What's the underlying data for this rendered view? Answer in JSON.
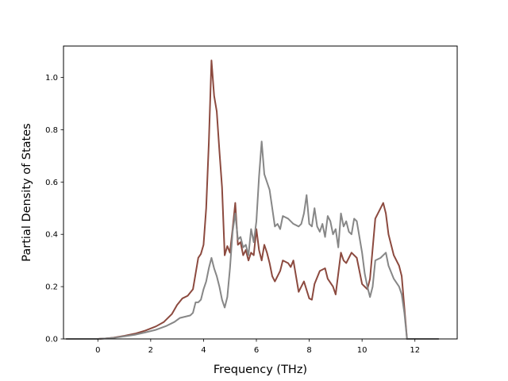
{
  "chart_data": {
    "type": "line",
    "xlabel": "Frequency (THz)",
    "ylabel": "Partial Density of States",
    "xlim": [
      -1.3,
      13.6
    ],
    "ylim": [
      0,
      1.12
    ],
    "xticks": [
      0,
      2,
      4,
      6,
      8,
      10,
      12
    ],
    "yticks": [
      0.0,
      0.2,
      0.4,
      0.6,
      0.8,
      1.0
    ],
    "xtick_labels": [
      "0",
      "2",
      "4",
      "6",
      "8",
      "10",
      "12"
    ],
    "ytick_labels": [
      "0.0",
      "0.2",
      "0.4",
      "0.6",
      "0.8",
      "1.0"
    ],
    "grid": false,
    "series": [
      {
        "color": "#8c4a3f",
        "points": [
          [
            -1.2,
            0
          ],
          [
            0.0,
            0
          ],
          [
            0.3,
            0.002
          ],
          [
            0.6,
            0.005
          ],
          [
            1.0,
            0.012
          ],
          [
            1.4,
            0.02
          ],
          [
            1.8,
            0.032
          ],
          [
            2.2,
            0.048
          ],
          [
            2.5,
            0.065
          ],
          [
            2.8,
            0.095
          ],
          [
            3.0,
            0.13
          ],
          [
            3.2,
            0.155
          ],
          [
            3.4,
            0.165
          ],
          [
            3.6,
            0.19
          ],
          [
            3.7,
            0.25
          ],
          [
            3.8,
            0.31
          ],
          [
            3.9,
            0.325
          ],
          [
            4.0,
            0.36
          ],
          [
            4.1,
            0.5
          ],
          [
            4.2,
            0.75
          ],
          [
            4.3,
            1.065
          ],
          [
            4.4,
            0.93
          ],
          [
            4.5,
            0.87
          ],
          [
            4.6,
            0.72
          ],
          [
            4.7,
            0.58
          ],
          [
            4.8,
            0.32
          ],
          [
            4.9,
            0.355
          ],
          [
            5.0,
            0.33
          ],
          [
            5.1,
            0.42
          ],
          [
            5.2,
            0.52
          ],
          [
            5.3,
            0.36
          ],
          [
            5.4,
            0.37
          ],
          [
            5.5,
            0.32
          ],
          [
            5.6,
            0.34
          ],
          [
            5.7,
            0.3
          ],
          [
            5.8,
            0.33
          ],
          [
            5.9,
            0.32
          ],
          [
            6.0,
            0.42
          ],
          [
            6.1,
            0.34
          ],
          [
            6.2,
            0.3
          ],
          [
            6.3,
            0.36
          ],
          [
            6.4,
            0.33
          ],
          [
            6.5,
            0.29
          ],
          [
            6.6,
            0.24
          ],
          [
            6.7,
            0.22
          ],
          [
            6.9,
            0.26
          ],
          [
            7.0,
            0.3
          ],
          [
            7.2,
            0.29
          ],
          [
            7.3,
            0.275
          ],
          [
            7.4,
            0.3
          ],
          [
            7.6,
            0.18
          ],
          [
            7.7,
            0.2
          ],
          [
            7.8,
            0.22
          ],
          [
            8.0,
            0.155
          ],
          [
            8.1,
            0.15
          ],
          [
            8.2,
            0.21
          ],
          [
            8.4,
            0.26
          ],
          [
            8.6,
            0.27
          ],
          [
            8.7,
            0.23
          ],
          [
            8.9,
            0.2
          ],
          [
            9.0,
            0.17
          ],
          [
            9.1,
            0.25
          ],
          [
            9.2,
            0.33
          ],
          [
            9.3,
            0.3
          ],
          [
            9.4,
            0.29
          ],
          [
            9.5,
            0.31
          ],
          [
            9.6,
            0.33
          ],
          [
            9.8,
            0.31
          ],
          [
            9.9,
            0.26
          ],
          [
            10.0,
            0.21
          ],
          [
            10.1,
            0.2
          ],
          [
            10.2,
            0.19
          ],
          [
            10.3,
            0.23
          ],
          [
            10.5,
            0.46
          ],
          [
            10.7,
            0.5
          ],
          [
            10.8,
            0.52
          ],
          [
            10.9,
            0.48
          ],
          [
            11.0,
            0.4
          ],
          [
            11.2,
            0.32
          ],
          [
            11.4,
            0.28
          ],
          [
            11.5,
            0.24
          ],
          [
            11.6,
            0.12
          ],
          [
            11.7,
            0.0
          ],
          [
            12.9,
            0
          ]
        ]
      },
      {
        "color": "#878787",
        "points": [
          [
            -1.2,
            0
          ],
          [
            0.0,
            0
          ],
          [
            0.3,
            0.002
          ],
          [
            0.6,
            0.004
          ],
          [
            1.0,
            0.01
          ],
          [
            1.4,
            0.016
          ],
          [
            1.8,
            0.025
          ],
          [
            2.2,
            0.035
          ],
          [
            2.6,
            0.05
          ],
          [
            2.9,
            0.065
          ],
          [
            3.1,
            0.08
          ],
          [
            3.3,
            0.085
          ],
          [
            3.5,
            0.09
          ],
          [
            3.6,
            0.1
          ],
          [
            3.7,
            0.14
          ],
          [
            3.8,
            0.14
          ],
          [
            3.9,
            0.15
          ],
          [
            4.0,
            0.19
          ],
          [
            4.1,
            0.22
          ],
          [
            4.2,
            0.27
          ],
          [
            4.3,
            0.31
          ],
          [
            4.4,
            0.27
          ],
          [
            4.5,
            0.24
          ],
          [
            4.6,
            0.2
          ],
          [
            4.7,
            0.15
          ],
          [
            4.8,
            0.12
          ],
          [
            4.9,
            0.16
          ],
          [
            5.0,
            0.27
          ],
          [
            5.1,
            0.41
          ],
          [
            5.2,
            0.48
          ],
          [
            5.3,
            0.38
          ],
          [
            5.4,
            0.39
          ],
          [
            5.5,
            0.35
          ],
          [
            5.6,
            0.36
          ],
          [
            5.7,
            0.32
          ],
          [
            5.8,
            0.42
          ],
          [
            5.9,
            0.37
          ],
          [
            6.0,
            0.45
          ],
          [
            6.1,
            0.62
          ],
          [
            6.2,
            0.755
          ],
          [
            6.3,
            0.63
          ],
          [
            6.4,
            0.6
          ],
          [
            6.5,
            0.57
          ],
          [
            6.6,
            0.5
          ],
          [
            6.7,
            0.43
          ],
          [
            6.8,
            0.44
          ],
          [
            6.9,
            0.42
          ],
          [
            7.0,
            0.47
          ],
          [
            7.2,
            0.46
          ],
          [
            7.4,
            0.44
          ],
          [
            7.6,
            0.43
          ],
          [
            7.7,
            0.44
          ],
          [
            7.8,
            0.48
          ],
          [
            7.9,
            0.55
          ],
          [
            8.0,
            0.44
          ],
          [
            8.1,
            0.43
          ],
          [
            8.2,
            0.5
          ],
          [
            8.3,
            0.43
          ],
          [
            8.4,
            0.41
          ],
          [
            8.5,
            0.44
          ],
          [
            8.6,
            0.39
          ],
          [
            8.7,
            0.47
          ],
          [
            8.8,
            0.45
          ],
          [
            8.9,
            0.4
          ],
          [
            9.0,
            0.42
          ],
          [
            9.1,
            0.35
          ],
          [
            9.2,
            0.48
          ],
          [
            9.3,
            0.43
          ],
          [
            9.4,
            0.45
          ],
          [
            9.5,
            0.41
          ],
          [
            9.6,
            0.4
          ],
          [
            9.7,
            0.46
          ],
          [
            9.8,
            0.45
          ],
          [
            9.9,
            0.39
          ],
          [
            10.0,
            0.33
          ],
          [
            10.1,
            0.25
          ],
          [
            10.2,
            0.2
          ],
          [
            10.3,
            0.16
          ],
          [
            10.4,
            0.2
          ],
          [
            10.5,
            0.3
          ],
          [
            10.7,
            0.31
          ],
          [
            10.9,
            0.33
          ],
          [
            11.0,
            0.28
          ],
          [
            11.2,
            0.23
          ],
          [
            11.4,
            0.2
          ],
          [
            11.5,
            0.17
          ],
          [
            11.6,
            0.1
          ],
          [
            11.7,
            0.0
          ],
          [
            12.9,
            0
          ]
        ]
      }
    ]
  }
}
